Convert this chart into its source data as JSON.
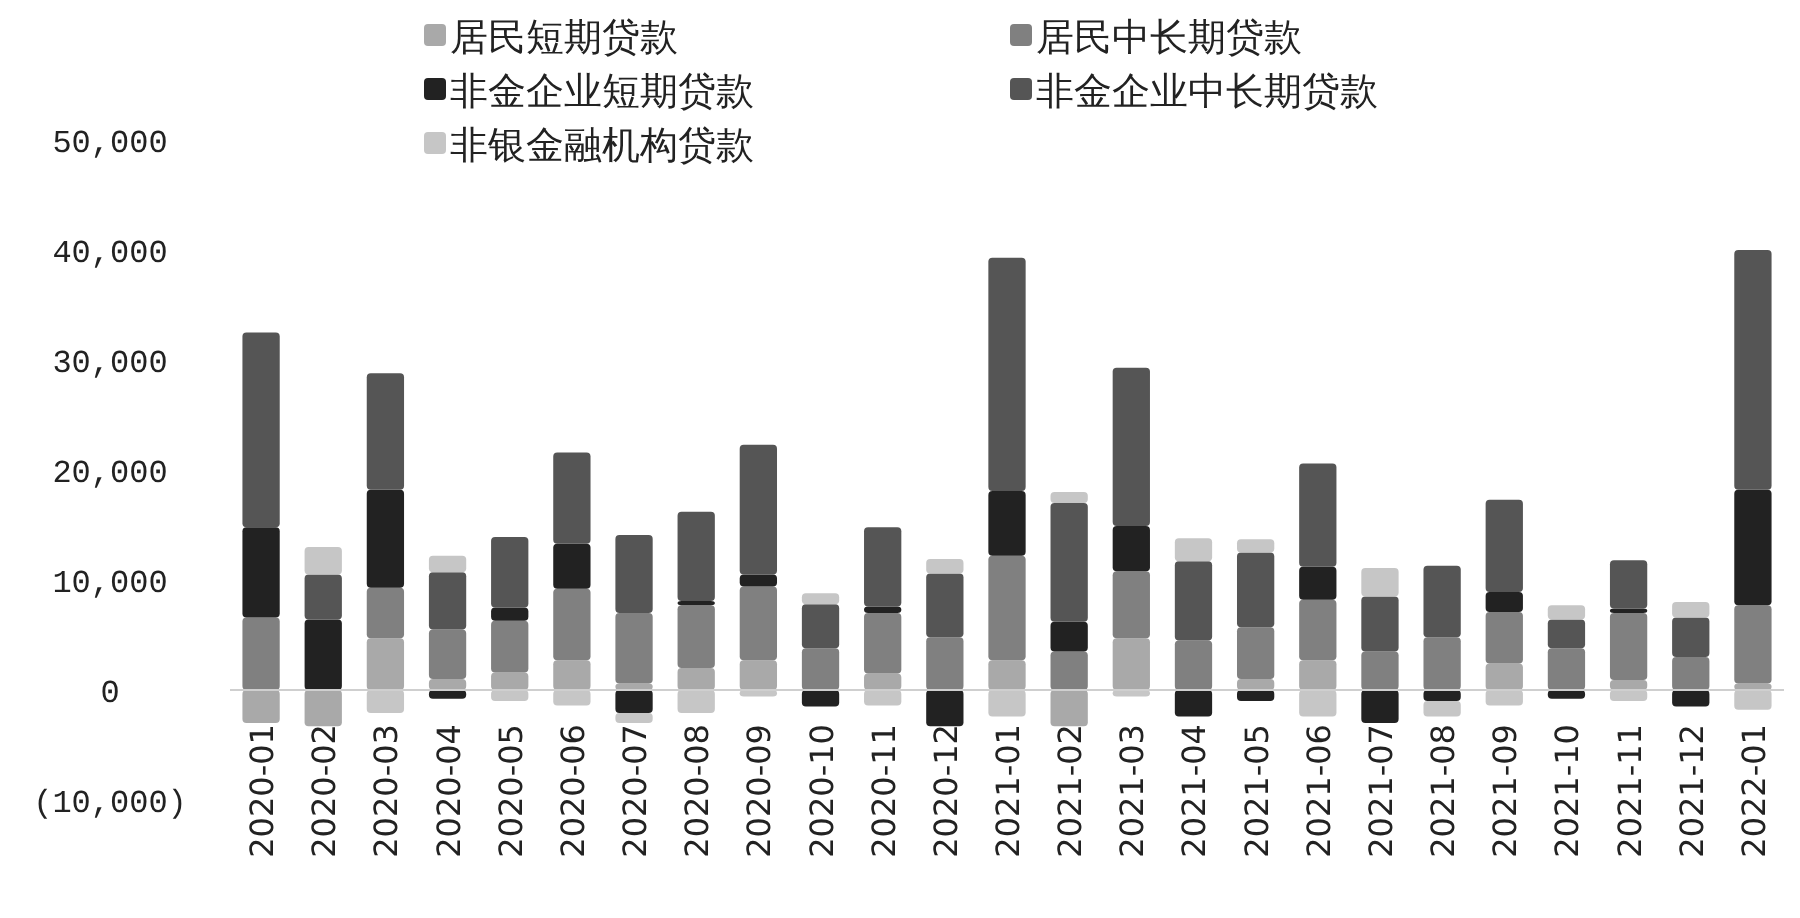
{
  "chart_data": {
    "type": "bar",
    "stacked": true,
    "legend": "top",
    "grid": false,
    "categories": [
      "2020-01",
      "2020-02",
      "2020-03",
      "2020-04",
      "2020-05",
      "2020-06",
      "2020-07",
      "2020-08",
      "2020-09",
      "2020-10",
      "2020-11",
      "2020-12",
      "2021-01",
      "2021-02",
      "2021-03",
      "2021-04",
      "2021-05",
      "2021-06",
      "2021-07",
      "2021-08",
      "2021-09",
      "2021-10",
      "2021-11",
      "2021-12",
      "2022-01"
    ],
    "ylim": [
      -10000,
      50000
    ],
    "yticks": [
      {
        "value": -10000,
        "label": "(10,000)"
      },
      0,
      {
        "value": 10000,
        "label": "10,000"
      },
      {
        "value": 20000,
        "label": "20,000"
      },
      {
        "value": 30000,
        "label": "30,000"
      },
      {
        "value": 40000,
        "label": "40,000"
      },
      {
        "value": 50000,
        "label": "50,000"
      }
    ],
    "series": [
      {
        "name": "居民短期贷款",
        "color": "#a9a9a9",
        "values": [
          -3000,
          -3300,
          4700,
          1000,
          1600,
          2700,
          600,
          2000,
          2700,
          0,
          1500,
          0,
          2700,
          -3300,
          4700,
          0,
          1000,
          2700,
          0,
          0,
          2400,
          0,
          900,
          0,
          600
        ]
      },
      {
        "name": "居民中长期贷款",
        "color": "#808080",
        "values": [
          6600,
          0,
          4600,
          4500,
          4700,
          6500,
          6400,
          5700,
          6700,
          3800,
          5500,
          4800,
          9500,
          3500,
          6100,
          4500,
          4700,
          5500,
          3500,
          4800,
          4700,
          3800,
          6100,
          3000,
          7100
        ]
      },
      {
        "name": "非金企业短期贷款",
        "color": "#222222",
        "values": [
          8200,
          6400,
          8900,
          -800,
          1200,
          4100,
          -2100,
          400,
          1100,
          -1500,
          600,
          -3300,
          5900,
          2700,
          4100,
          -2400,
          -1000,
          3000,
          -3000,
          -1000,
          1800,
          -800,
          400,
          -1500,
          10500
        ]
      },
      {
        "name": "非金企业中长期贷款",
        "color": "#555555",
        "values": [
          17700,
          4100,
          10600,
          5200,
          6400,
          8300,
          7100,
          8100,
          11800,
          4000,
          7200,
          5800,
          21200,
          10800,
          14400,
          7200,
          6800,
          9400,
          5000,
          6500,
          8400,
          2600,
          4400,
          3600,
          21800
        ]
      },
      {
        "name": "非银金融机构贷款",
        "color": "#c6c6c6",
        "values": [
          0,
          2500,
          -2100,
          1500,
          -1000,
          -1400,
          -900,
          -2100,
          -600,
          1000,
          -1400,
          1300,
          -2400,
          1000,
          -600,
          2100,
          1200,
          -2400,
          2600,
          -1400,
          -1400,
          1300,
          -1000,
          1400,
          -1800
        ]
      }
    ]
  }
}
